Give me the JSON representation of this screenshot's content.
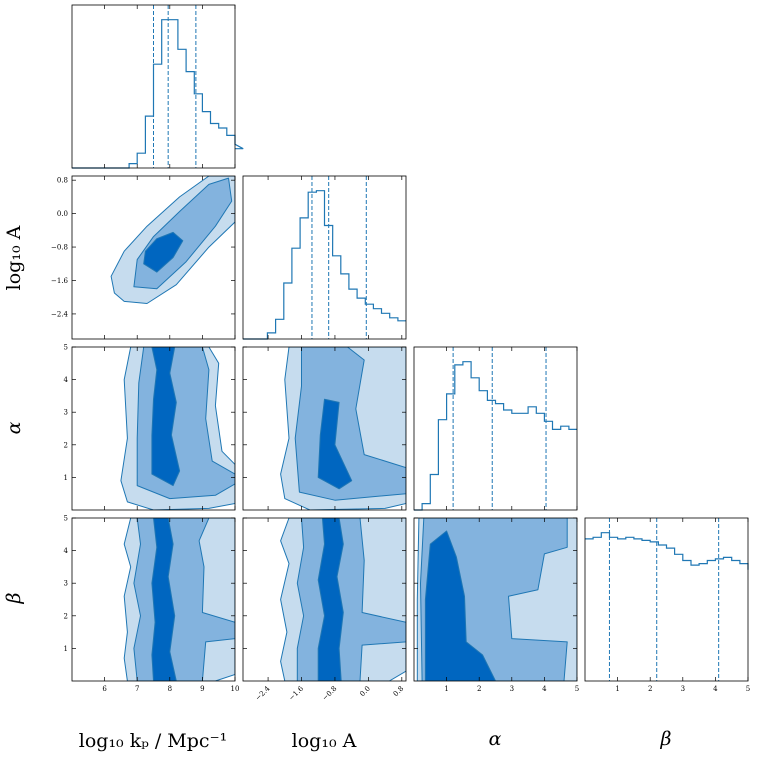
{
  "chart_data": {
    "type": "corner",
    "params": [
      {
        "key": "log10kp",
        "label": "log₁₀ kₚ / Mpc⁻¹",
        "range": [
          5,
          10
        ],
        "ticks": [
          6,
          7,
          8,
          9,
          10
        ],
        "tick_labels": [
          "6",
          "7",
          "8",
          "9",
          "10"
        ]
      },
      {
        "key": "log10A",
        "label": "log₁₀ A",
        "range": [
          -3.0,
          0.9
        ],
        "ticks": [
          -2.4,
          -1.6,
          -0.8,
          0.0,
          0.8
        ],
        "tick_labels": [
          "−2.4",
          "−1.6",
          "−0.8",
          "0.0",
          "0.8"
        ]
      },
      {
        "key": "alpha",
        "label": "α",
        "range": [
          0,
          5
        ],
        "ticks": [
          1,
          2,
          3,
          4,
          5
        ],
        "tick_labels": [
          "1",
          "2",
          "3",
          "4",
          "5"
        ]
      },
      {
        "key": "beta",
        "label": "β",
        "range": [
          0,
          5
        ],
        "ticks": [
          1,
          2,
          3,
          4,
          5
        ],
        "tick_labels": [
          "1",
          "2",
          "3",
          "4",
          "5"
        ]
      }
    ],
    "histograms": [
      {
        "param": "log10kp",
        "edges_start": 5.0,
        "bin_width": 0.25,
        "values": [
          0,
          0,
          0,
          0,
          0,
          0,
          0,
          0.03,
          0.1,
          0.35,
          0.7,
          1.0,
          1.0,
          0.8,
          0.65,
          0.5,
          0.38,
          0.3,
          0.27,
          0.22,
          0.16,
          0.13
        ],
        "quantiles": [
          7.5,
          7.95,
          8.8
        ]
      },
      {
        "param": "log10A",
        "edges_start": -3.0,
        "bin_width": 0.195,
        "values": [
          0,
          0,
          0,
          0.04,
          0.13,
          0.37,
          0.6,
          0.8,
          0.97,
          0.98,
          0.75,
          0.55,
          0.43,
          0.33,
          0.27,
          0.23,
          0.2,
          0.17,
          0.14,
          0.12
        ],
        "quantiles": [
          -1.35,
          -0.95,
          -0.05
        ]
      },
      {
        "param": "alpha",
        "edges_start": 0.0,
        "bin_width": 0.25,
        "values": [
          0,
          0.04,
          0.22,
          0.56,
          0.72,
          0.9,
          0.92,
          0.82,
          0.74,
          0.68,
          0.66,
          0.62,
          0.6,
          0.6,
          0.64,
          0.6,
          0.55,
          0.5,
          0.52,
          0.5,
          0.5
        ],
        "quantiles": [
          1.2,
          2.4,
          4.05
        ]
      },
      {
        "param": "beta",
        "edges_start": 0.0,
        "bin_width": 0.25,
        "values": [
          0.92,
          0.93,
          0.96,
          0.93,
          0.92,
          0.93,
          0.92,
          0.91,
          0.9,
          0.88,
          0.86,
          0.82,
          0.78,
          0.75,
          0.76,
          0.78,
          0.79,
          0.8,
          0.78,
          0.76,
          0.72
        ],
        "quantiles": [
          0.75,
          2.2,
          4.1
        ]
      }
    ],
    "contour_levels": [
      "outer",
      "middle",
      "inner"
    ],
    "contour_colors": [
      "#c6dcee",
      "#83b3de",
      "#0066c0"
    ],
    "line_color": "#1f77b4",
    "contours": [
      {
        "x": "log10kp",
        "y": "log10A",
        "levels": [
          [
            [
              6.3,
              -1.9
            ],
            [
              6.6,
              -2.1
            ],
            [
              7.3,
              -2.15
            ],
            [
              8.2,
              -1.7
            ],
            [
              9.2,
              -0.8
            ],
            [
              10,
              -0.2
            ],
            [
              10,
              0.9
            ],
            [
              9.2,
              0.9
            ],
            [
              8.3,
              0.4
            ],
            [
              7.3,
              -0.3
            ],
            [
              6.6,
              -0.9
            ],
            [
              6.2,
              -1.5
            ]
          ],
          [
            [
              6.9,
              -1.75
            ],
            [
              7.6,
              -1.8
            ],
            [
              8.5,
              -1.15
            ],
            [
              9.4,
              -0.3
            ],
            [
              9.9,
              0.3
            ],
            [
              9.8,
              0.85
            ],
            [
              9.2,
              0.7
            ],
            [
              8.3,
              0.05
            ],
            [
              7.5,
              -0.55
            ],
            [
              7.0,
              -1.1
            ]
          ],
          [
            [
              7.2,
              -1.2
            ],
            [
              7.6,
              -1.4
            ],
            [
              8.1,
              -1.05
            ],
            [
              8.4,
              -0.65
            ],
            [
              8.1,
              -0.45
            ],
            [
              7.6,
              -0.6
            ],
            [
              7.25,
              -0.9
            ]
          ]
        ]
      },
      {
        "x": "log10kp",
        "y": "alpha",
        "levels": [
          [
            [
              6.7,
              0.25
            ],
            [
              7.5,
              0.0
            ],
            [
              9.2,
              0.05
            ],
            [
              10,
              0.2
            ],
            [
              10,
              1.4
            ],
            [
              9.6,
              1.8
            ],
            [
              9.4,
              3.2
            ],
            [
              9.5,
              4.5
            ],
            [
              9.2,
              5
            ],
            [
              6.8,
              5
            ],
            [
              6.6,
              4.0
            ],
            [
              6.7,
              2.2
            ],
            [
              6.5,
              0.9
            ]
          ],
          [
            [
              7.0,
              0.75
            ],
            [
              8.0,
              0.35
            ],
            [
              9.4,
              0.45
            ],
            [
              10,
              0.8
            ],
            [
              10,
              1.1
            ],
            [
              9.3,
              1.5
            ],
            [
              9.1,
              2.8
            ],
            [
              9.2,
              4.3
            ],
            [
              9.0,
              5
            ],
            [
              7.2,
              5
            ],
            [
              7.05,
              3.9
            ],
            [
              7.0,
              2.2
            ]
          ],
          [
            [
              7.45,
              1.1
            ],
            [
              8.1,
              0.75
            ],
            [
              8.3,
              1.2
            ],
            [
              8.05,
              2.3
            ],
            [
              8.2,
              3.3
            ],
            [
              8.0,
              4.2
            ],
            [
              8.15,
              5
            ],
            [
              7.45,
              5
            ],
            [
              7.6,
              4.3
            ],
            [
              7.5,
              3.4
            ],
            [
              7.45,
              2.3
            ]
          ]
        ]
      },
      {
        "x": "log10A",
        "y": "alpha",
        "levels": [
          [
            [
              -2.0,
              0.35
            ],
            [
              -1.4,
              0.0
            ],
            [
              0.4,
              0.05
            ],
            [
              0.9,
              0.2
            ],
            [
              0.9,
              5
            ],
            [
              -1.9,
              5
            ],
            [
              -2.0,
              4.0
            ],
            [
              -1.9,
              2.2
            ],
            [
              -2.1,
              1.1
            ]
          ],
          [
            [
              -1.65,
              0.55
            ],
            [
              -0.8,
              0.3
            ],
            [
              0.9,
              0.5
            ],
            [
              0.9,
              1.3
            ],
            [
              -0.1,
              1.7
            ],
            [
              -0.3,
              3.1
            ],
            [
              -0.1,
              4.6
            ],
            [
              -0.5,
              5
            ],
            [
              -1.6,
              5
            ],
            [
              -1.6,
              3.8
            ],
            [
              -1.75,
              2.2
            ]
          ],
          [
            [
              -1.2,
              1.0
            ],
            [
              -0.7,
              0.65
            ],
            [
              -0.4,
              0.9
            ],
            [
              -0.8,
              2.0
            ],
            [
              -0.7,
              3.3
            ],
            [
              -1.05,
              3.4
            ],
            [
              -1.15,
              2.3
            ]
          ]
        ]
      },
      {
        "x": "log10kp",
        "y": "beta",
        "levels": [
          [
            [
              6.7,
              0
            ],
            [
              9.4,
              0
            ],
            [
              10,
              0.2
            ],
            [
              10,
              5
            ],
            [
              6.8,
              5
            ],
            [
              6.6,
              4.2
            ],
            [
              6.8,
              3.5
            ],
            [
              6.6,
              2.6
            ],
            [
              6.7,
              1.5
            ],
            [
              6.6,
              0.7
            ]
          ],
          [
            [
              7.0,
              0
            ],
            [
              9.0,
              0
            ],
            [
              9.1,
              1.2
            ],
            [
              10,
              1.3
            ],
            [
              10,
              1.8
            ],
            [
              9.0,
              2.1
            ],
            [
              9.05,
              3.5
            ],
            [
              8.9,
              4.3
            ],
            [
              9.2,
              5
            ],
            [
              7.0,
              5
            ],
            [
              7.1,
              4.2
            ],
            [
              6.9,
              3.0
            ],
            [
              7.1,
              2.0
            ],
            [
              6.9,
              1.0
            ]
          ],
          [
            [
              7.5,
              0
            ],
            [
              8.2,
              0
            ],
            [
              8.0,
              0.9
            ],
            [
              8.15,
              2.0
            ],
            [
              7.95,
              3.2
            ],
            [
              8.1,
              4.2
            ],
            [
              7.95,
              5
            ],
            [
              7.5,
              5
            ],
            [
              7.6,
              4.1
            ],
            [
              7.45,
              3.0
            ],
            [
              7.55,
              1.8
            ],
            [
              7.45,
              0.8
            ]
          ]
        ]
      },
      {
        "x": "log10A",
        "y": "beta",
        "levels": [
          [
            [
              -2.0,
              0
            ],
            [
              0.5,
              0
            ],
            [
              0.9,
              0.3
            ],
            [
              0.9,
              5
            ],
            [
              -1.9,
              5
            ],
            [
              -2.1,
              4.3
            ],
            [
              -1.9,
              3.6
            ],
            [
              -2.1,
              2.5
            ],
            [
              -1.95,
              1.5
            ],
            [
              -2.1,
              0.6
            ]
          ],
          [
            [
              -1.7,
              0
            ],
            [
              -0.2,
              0
            ],
            [
              -0.15,
              1.1
            ],
            [
              0.9,
              1.2
            ],
            [
              0.9,
              1.8
            ],
            [
              -0.15,
              2.1
            ],
            [
              -0.1,
              3.7
            ],
            [
              -0.2,
              5
            ],
            [
              -1.6,
              5
            ],
            [
              -1.55,
              4.1
            ],
            [
              -1.7,
              3.0
            ],
            [
              -1.55,
              2.0
            ],
            [
              -1.7,
              1.0
            ]
          ],
          [
            [
              -1.2,
              0
            ],
            [
              -0.65,
              0
            ],
            [
              -0.7,
              1.0
            ],
            [
              -0.6,
              2.1
            ],
            [
              -0.75,
              3.2
            ],
            [
              -0.6,
              4.2
            ],
            [
              -0.7,
              5
            ],
            [
              -1.1,
              5
            ],
            [
              -1.05,
              4.2
            ],
            [
              -1.2,
              3.1
            ],
            [
              -1.05,
              2.0
            ],
            [
              -1.2,
              1.0
            ]
          ]
        ]
      },
      {
        "x": "alpha",
        "y": "beta",
        "levels": [
          [
            [
              0.1,
              0
            ],
            [
              5,
              0
            ],
            [
              5,
              5
            ],
            [
              0.15,
              5
            ],
            [
              0.1,
              2.5
            ]
          ],
          [
            [
              0.25,
              0
            ],
            [
              4.6,
              0
            ],
            [
              4.7,
              1.2
            ],
            [
              3.0,
              1.3
            ],
            [
              2.9,
              2.6
            ],
            [
              3.8,
              2.8
            ],
            [
              4.0,
              3.9
            ],
            [
              4.7,
              4.1
            ],
            [
              4.7,
              5
            ],
            [
              0.3,
              5
            ],
            [
              0.2,
              3.0
            ]
          ],
          [
            [
              0.35,
              0
            ],
            [
              2.5,
              0
            ],
            [
              2.1,
              0.8
            ],
            [
              1.6,
              1.2
            ],
            [
              1.55,
              2.6
            ],
            [
              1.3,
              3.8
            ],
            [
              1.0,
              4.6
            ],
            [
              0.5,
              4.2
            ],
            [
              0.35,
              2.5
            ]
          ]
        ]
      }
    ]
  }
}
